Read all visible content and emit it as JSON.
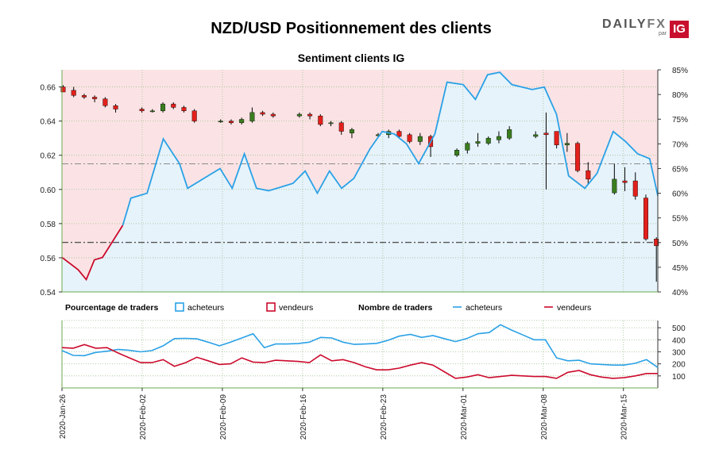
{
  "chart_data": [
    {
      "type": "candlestick",
      "title": "NZD/USD Positionnement des clients",
      "subtitle": "Sentiment clients IG",
      "y_left_ticks": [
        "0.66",
        "0.64",
        "0.62",
        "0.60",
        "0.58",
        "0.56",
        "0.54"
      ],
      "y_left_range": [
        0.54,
        0.67
      ],
      "y_right_ticks": [
        "85%",
        "80%",
        "75%",
        "70%",
        "65%",
        "60%",
        "55%",
        "50%",
        "45%",
        "40%"
      ],
      "y_right_range": [
        40,
        85
      ],
      "reference_lines_price": [
        0.615,
        0.569
      ],
      "candles": [
        {
          "day": 0,
          "o": 0.66,
          "h": 0.661,
          "l": 0.657,
          "c": 0.657
        },
        {
          "day": 2,
          "o": 0.658,
          "h": 0.66,
          "l": 0.654,
          "c": 0.655
        },
        {
          "day": 4,
          "o": 0.655,
          "h": 0.656,
          "l": 0.653,
          "c": 0.654
        },
        {
          "day": 6,
          "o": 0.654,
          "h": 0.655,
          "l": 0.651,
          "c": 0.653
        },
        {
          "day": 8,
          "o": 0.653,
          "h": 0.654,
          "l": 0.648,
          "c": 0.649
        },
        {
          "day": 10,
          "o": 0.649,
          "h": 0.65,
          "l": 0.645,
          "c": 0.647
        },
        {
          "day": 15,
          "o": 0.647,
          "h": 0.648,
          "l": 0.645,
          "c": 0.646
        },
        {
          "day": 17,
          "o": 0.646,
          "h": 0.647,
          "l": 0.645,
          "c": 0.646
        },
        {
          "day": 19,
          "o": 0.646,
          "h": 0.651,
          "l": 0.645,
          "c": 0.65
        },
        {
          "day": 21,
          "o": 0.65,
          "h": 0.651,
          "l": 0.647,
          "c": 0.648
        },
        {
          "day": 23,
          "o": 0.648,
          "h": 0.649,
          "l": 0.645,
          "c": 0.646
        },
        {
          "day": 25,
          "o": 0.646,
          "h": 0.647,
          "l": 0.639,
          "c": 0.64
        },
        {
          "day": 30,
          "o": 0.64,
          "h": 0.641,
          "l": 0.639,
          "c": 0.64
        },
        {
          "day": 32,
          "o": 0.64,
          "h": 0.641,
          "l": 0.638,
          "c": 0.639
        },
        {
          "day": 34,
          "o": 0.639,
          "h": 0.642,
          "l": 0.638,
          "c": 0.641
        },
        {
          "day": 36,
          "o": 0.64,
          "h": 0.648,
          "l": 0.639,
          "c": 0.645
        },
        {
          "day": 38,
          "o": 0.645,
          "h": 0.646,
          "l": 0.643,
          "c": 0.644
        },
        {
          "day": 40,
          "o": 0.644,
          "h": 0.645,
          "l": 0.642,
          "c": 0.643
        },
        {
          "day": 45,
          "o": 0.643,
          "h": 0.645,
          "l": 0.642,
          "c": 0.644
        },
        {
          "day": 47,
          "o": 0.644,
          "h": 0.645,
          "l": 0.641,
          "c": 0.643
        },
        {
          "day": 49,
          "o": 0.643,
          "h": 0.644,
          "l": 0.637,
          "c": 0.638
        },
        {
          "day": 51,
          "o": 0.639,
          "h": 0.64,
          "l": 0.637,
          "c": 0.639
        },
        {
          "day": 53,
          "o": 0.639,
          "h": 0.64,
          "l": 0.632,
          "c": 0.634
        },
        {
          "day": 55,
          "o": 0.633,
          "h": 0.636,
          "l": 0.63,
          "c": 0.635
        },
        {
          "day": 60,
          "o": 0.632,
          "h": 0.633,
          "l": 0.631,
          "c": 0.632
        },
        {
          "day": 62,
          "o": 0.632,
          "h": 0.635,
          "l": 0.63,
          "c": 0.634
        },
        {
          "day": 64,
          "o": 0.634,
          "h": 0.635,
          "l": 0.63,
          "c": 0.631
        },
        {
          "day": 66,
          "o": 0.632,
          "h": 0.633,
          "l": 0.627,
          "c": 0.628
        },
        {
          "day": 68,
          "o": 0.628,
          "h": 0.633,
          "l": 0.626,
          "c": 0.631
        },
        {
          "day": 70,
          "o": 0.631,
          "h": 0.632,
          "l": 0.619,
          "c": 0.625
        },
        {
          "day": 75,
          "o": 0.62,
          "h": 0.624,
          "l": 0.619,
          "c": 0.623
        },
        {
          "day": 77,
          "o": 0.623,
          "h": 0.628,
          "l": 0.621,
          "c": 0.627
        },
        {
          "day": 79,
          "o": 0.627,
          "h": 0.633,
          "l": 0.625,
          "c": 0.628
        },
        {
          "day": 81,
          "o": 0.627,
          "h": 0.631,
          "l": 0.626,
          "c": 0.63
        },
        {
          "day": 83,
          "o": 0.629,
          "h": 0.634,
          "l": 0.627,
          "c": 0.631
        },
        {
          "day": 85,
          "o": 0.63,
          "h": 0.637,
          "l": 0.629,
          "c": 0.635
        },
        {
          "day": 90,
          "o": 0.631,
          "h": 0.634,
          "l": 0.63,
          "c": 0.632
        },
        {
          "day": 92,
          "o": 0.633,
          "h": 0.645,
          "l": 0.6,
          "c": 0.632
        },
        {
          "day": 94,
          "o": 0.634,
          "h": 0.634,
          "l": 0.624,
          "c": 0.626
        },
        {
          "day": 96,
          "o": 0.626,
          "h": 0.633,
          "l": 0.622,
          "c": 0.627
        },
        {
          "day": 98,
          "o": 0.627,
          "h": 0.628,
          "l": 0.61,
          "c": 0.611
        },
        {
          "day": 100,
          "o": 0.611,
          "h": 0.616,
          "l": 0.603,
          "c": 0.606
        },
        {
          "day": 105,
          "o": 0.598,
          "h": 0.615,
          "l": 0.597,
          "c": 0.606
        },
        {
          "day": 107,
          "o": 0.605,
          "h": 0.613,
          "l": 0.599,
          "c": 0.604
        },
        {
          "day": 109,
          "o": 0.605,
          "h": 0.61,
          "l": 0.594,
          "c": 0.596
        },
        {
          "day": 111,
          "o": 0.595,
          "h": 0.597,
          "l": 0.57,
          "c": 0.571
        },
        {
          "day": 113,
          "o": 0.571,
          "h": 0.572,
          "l": 0.546,
          "c": 0.567
        }
      ],
      "buyers_pct_points": [
        {
          "day": 0,
          "v": 47.0
        },
        {
          "day": 4,
          "v": 44.5
        },
        {
          "day": 6,
          "v": 42.5
        },
        {
          "day": 8,
          "v": 46.5
        },
        {
          "day": 10,
          "v": 47.0
        },
        {
          "day": 15,
          "v": 53.5
        },
        {
          "day": 17,
          "v": 59.0
        },
        {
          "day": 21,
          "v": 60.0
        },
        {
          "day": 25,
          "v": 71.0
        },
        {
          "day": 29,
          "v": 66.0
        },
        {
          "day": 31,
          "v": 61.0
        },
        {
          "day": 35,
          "v": 63.0
        },
        {
          "day": 39,
          "v": 65.0
        },
        {
          "day": 42,
          "v": 61.0
        },
        {
          "day": 45,
          "v": 68.0
        },
        {
          "day": 48,
          "v": 61.0
        },
        {
          "day": 51,
          "v": 60.5
        },
        {
          "day": 55,
          "v": 61.5
        },
        {
          "day": 57,
          "v": 62.0
        },
        {
          "day": 60,
          "v": 64.5
        },
        {
          "day": 63,
          "v": 60.0
        },
        {
          "day": 66,
          "v": 64.5
        },
        {
          "day": 69,
          "v": 61.0
        },
        {
          "day": 72,
          "v": 63.0
        },
        {
          "day": 76,
          "v": 69.0
        },
        {
          "day": 79,
          "v": 72.5
        },
        {
          "day": 82,
          "v": 72.0
        },
        {
          "day": 85,
          "v": 70.0
        },
        {
          "day": 88,
          "v": 66.0
        },
        {
          "day": 92,
          "v": 72.0
        },
        {
          "day": 95,
          "v": 82.5
        },
        {
          "day": 99,
          "v": 82.0
        },
        {
          "day": 102,
          "v": 79.0
        },
        {
          "day": 105,
          "v": 84.0
        },
        {
          "day": 108,
          "v": 84.5
        },
        {
          "day": 111,
          "v": 82.0
        },
        {
          "day": 116,
          "v": 81.0
        },
        {
          "day": 119,
          "v": 81.5
        },
        {
          "day": 122,
          "v": 76.0
        },
        {
          "day": 125,
          "v": 63.5
        },
        {
          "day": 129,
          "v": 61.0
        },
        {
          "day": 132,
          "v": 64.0
        },
        {
          "day": 136,
          "v": 72.5
        },
        {
          "day": 139,
          "v": 70.5
        },
        {
          "day": 142,
          "v": 68.0
        },
        {
          "day": 145,
          "v": 67.0
        },
        {
          "day": 147,
          "v": 59.5
        }
      ],
      "x_ticks": [
        {
          "day": 0,
          "label": "2020-Jan-26"
        },
        {
          "day": 7,
          "label": "2020-Feb-02"
        },
        {
          "day": 14,
          "label": "2020-Feb-09"
        },
        {
          "day": 21,
          "label": "2020-Feb-16"
        },
        {
          "day": 28,
          "label": "2020-Feb-23"
        },
        {
          "day": 35,
          "label": "2020-Mar-01"
        },
        {
          "day": 42,
          "label": "2020-Mar-08"
        },
        {
          "day": 49,
          "label": "2020-Mar-15"
        }
      ]
    },
    {
      "type": "line",
      "legend": {
        "pct_title": "Pourcentage de traders",
        "count_title": "Nombre de traders",
        "buyers": "acheteurs",
        "sellers": "vendeurs"
      },
      "y_ticks": [
        "500",
        "400",
        "300",
        "200",
        "100"
      ],
      "y_range": [
        0,
        560
      ],
      "series": [
        {
          "name": "acheteurs",
          "values": [
            310,
            270,
            268,
            295,
            305,
            320,
            312,
            300,
            310,
            350,
            410,
            412,
            408,
            380,
            350,
            380,
            415,
            450,
            335,
            365,
            365,
            368,
            380,
            420,
            415,
            380,
            362,
            365,
            370,
            395,
            430,
            445,
            420,
            435,
            410,
            385,
            410,
            450,
            460,
            525,
            480,
            440,
            400,
            400,
            250,
            225,
            230,
            200,
            195,
            190,
            190,
            205,
            235,
            170
          ]
        },
        {
          "name": "vendeurs",
          "values": [
            335,
            330,
            360,
            330,
            335,
            290,
            250,
            210,
            210,
            235,
            180,
            210,
            255,
            225,
            195,
            200,
            250,
            215,
            210,
            230,
            225,
            220,
            210,
            275,
            225,
            235,
            210,
            175,
            150,
            150,
            165,
            190,
            210,
            190,
            135,
            80,
            90,
            110,
            85,
            95,
            105,
            100,
            95,
            95,
            80,
            130,
            145,
            110,
            90,
            80,
            85,
            100,
            120,
            120
          ]
        }
      ]
    }
  ],
  "colors": {
    "buyers": "#2aa1e6",
    "sellers": "#cc0a2c",
    "up": "#3a7d1e",
    "down": "#e3201b",
    "buyer_fill": "#e6f3fb",
    "seller_fill": "#fbe3e5"
  },
  "logo": {
    "daily": "DAILY",
    "fx": "FX",
    "par": "par",
    "ig": "IG"
  }
}
